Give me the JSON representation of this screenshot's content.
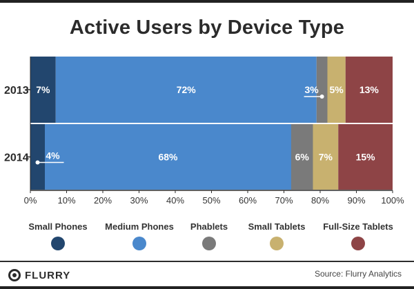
{
  "chart_data": {
    "type": "bar",
    "orientation": "horizontal",
    "stacked": true,
    "title": "Active Users by Device Type",
    "categories": [
      "2013",
      "2014"
    ],
    "series": [
      {
        "name": "Small Phones",
        "color": "#22466e",
        "values": [
          7,
          4
        ]
      },
      {
        "name": "Medium Phones",
        "color": "#4a88cc",
        "values": [
          72,
          68
        ]
      },
      {
        "name": "Phablets",
        "color": "#7a7a7a",
        "values": [
          3,
          6
        ]
      },
      {
        "name": "Small Tablets",
        "color": "#c8b16f",
        "values": [
          5,
          7
        ]
      },
      {
        "name": "Full-Size Tablets",
        "color": "#8e4446",
        "values": [
          13,
          15
        ]
      }
    ],
    "data_labels": [
      [
        "7%",
        "72%",
        "3%",
        "5%",
        "13%"
      ],
      [
        "4%",
        "68%",
        "6%",
        "7%",
        "15%"
      ]
    ],
    "xlim": [
      0,
      100
    ],
    "xticks": [
      "0%",
      "10%",
      "20%",
      "30%",
      "40%",
      "50%",
      "60%",
      "70%",
      "80%",
      "90%",
      "100%"
    ],
    "xlabel": "",
    "ylabel": "",
    "legend_position": "bottom"
  },
  "brand": {
    "name": "FLURRY"
  },
  "source": "Source: Flurry Analytics"
}
